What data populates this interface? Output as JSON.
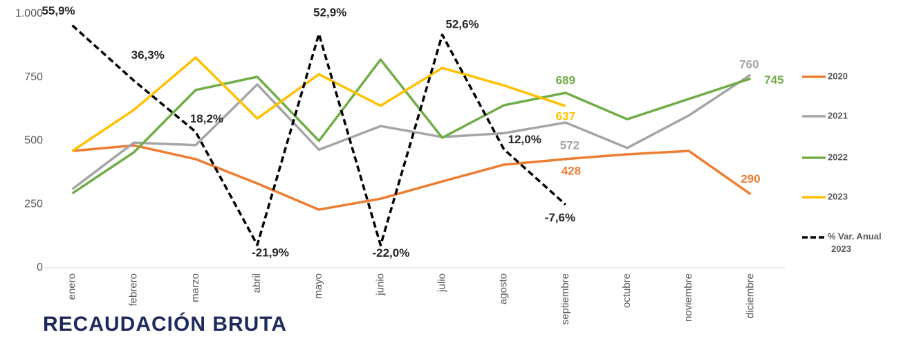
{
  "chart_data": {
    "type": "line",
    "footer_text": "RECAUDACIÓN BRUTA",
    "categories": [
      "enero",
      "febrero",
      "marzo",
      "abril",
      "mayo",
      "junio",
      "julio",
      "agosto",
      "septiembre",
      "octubre",
      "noviembre",
      "diciembre"
    ],
    "ylim": [
      0,
      1000
    ],
    "yticks": [
      0,
      250,
      500,
      750,
      {
        "value": 1000,
        "label": "1.000"
      }
    ],
    "y2lim": [
      -30,
      60
    ],
    "grid": false,
    "legend": "right",
    "series": [
      {
        "name": "2020",
        "color": "#ed7d31",
        "values": [
          460,
          482,
          428,
          332,
          229,
          272,
          340,
          406,
          428,
          447,
          460,
          290
        ],
        "data_labels": [
          8,
          11
        ]
      },
      {
        "name": "2021",
        "color": "#a5a5a5",
        "values": [
          310,
          493,
          483,
          722,
          465,
          558,
          515,
          530,
          572,
          472,
          600,
          760
        ],
        "data_labels": [
          8,
          11
        ]
      },
      {
        "name": "2022",
        "color": "#70ad47",
        "values": [
          293,
          455,
          700,
          752,
          500,
          820,
          512,
          640,
          689,
          585,
          665,
          745
        ],
        "data_labels": [
          8,
          11
        ]
      },
      {
        "name": "2023",
        "color": "#ffc000",
        "values": [
          460,
          622,
          828,
          588,
          762,
          638,
          787,
          718,
          637,
          null,
          null,
          null
        ],
        "data_labels": [
          8
        ]
      },
      {
        "name": "% Var. Anual 2023",
        "color": "#000000",
        "axis": "y2",
        "dashed": true,
        "values": [
          55.9,
          36.3,
          18.2,
          -21.9,
          52.9,
          -22.0,
          52.6,
          12.0,
          -7.6,
          null,
          null,
          null
        ],
        "value_labels": [
          "55,9%",
          "36,3%",
          "18,2%",
          "-21,9%",
          "52,9%",
          "-22,0%",
          "52,6%",
          "12,0%",
          "-7,6%",
          null,
          null,
          null
        ],
        "data_labels": [
          0,
          1,
          2,
          3,
          4,
          5,
          6,
          7,
          8
        ]
      }
    ]
  }
}
